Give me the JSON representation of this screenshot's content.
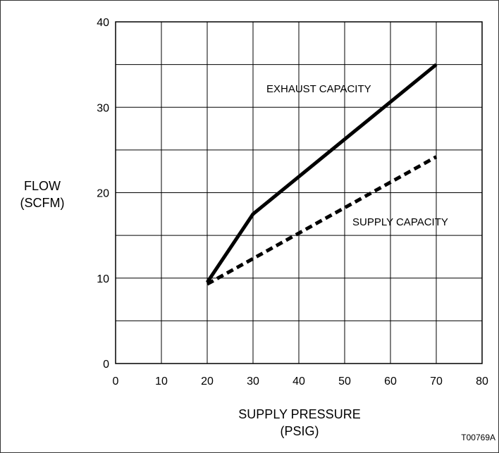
{
  "chart_data": {
    "type": "line",
    "title": "",
    "xlabel": [
      "SUPPLY PRESSURE",
      "(PSIG)"
    ],
    "ylabel": [
      "FLOW",
      "(SCFM)"
    ],
    "xlim": [
      0,
      80
    ],
    "ylim": [
      0,
      40
    ],
    "x_ticks": [
      0,
      10,
      20,
      30,
      40,
      50,
      60,
      70,
      80
    ],
    "y_ticks": [
      0,
      10,
      20,
      30,
      40
    ],
    "grid": true,
    "series": [
      {
        "name": "EXHAUST CAPACITY",
        "style": "solid",
        "color": "#000000",
        "x": [
          20,
          30,
          70
        ],
        "y": [
          9.5,
          17.5,
          35
        ]
      },
      {
        "name": "SUPPLY CAPACITY",
        "style": "dashed",
        "color": "#000000",
        "x": [
          20,
          70
        ],
        "y": [
          9.3,
          24.2
        ]
      }
    ],
    "figure_code": "T00769A"
  }
}
